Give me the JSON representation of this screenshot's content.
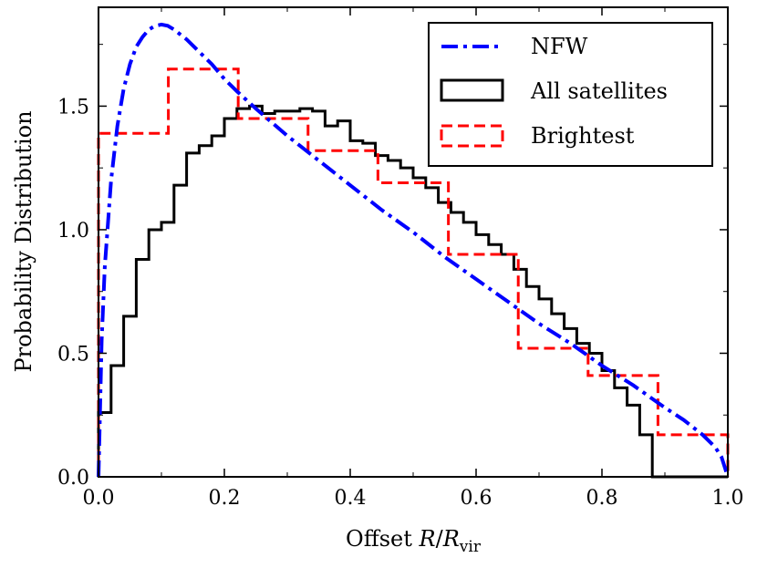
{
  "chart_data": {
    "type": "line",
    "xlabel": {
      "prefix": "Offset ",
      "R": "R",
      "slash": "/",
      "Rsub": "R",
      "sub": "vir"
    },
    "ylabel": "Probability Distribution",
    "xlim": [
      0.0,
      1.0
    ],
    "ylim": [
      0.0,
      1.9
    ],
    "xticks": [
      "0.0",
      "0.2",
      "0.4",
      "0.6",
      "0.8",
      "1.0"
    ],
    "yticks": [
      "0.0",
      "0.5",
      "1.0",
      "1.5"
    ],
    "legend_position": "top-right",
    "series": [
      {
        "name": "NFW",
        "style": "dashdot",
        "color": "#0000ff",
        "kind": "curve",
        "x": [
          0.0,
          0.005,
          0.01,
          0.02,
          0.03,
          0.04,
          0.05,
          0.06,
          0.07,
          0.08,
          0.09,
          0.1,
          0.11,
          0.12,
          0.14,
          0.16,
          0.18,
          0.2,
          0.22,
          0.25,
          0.3,
          0.35,
          0.4,
          0.45,
          0.5,
          0.55,
          0.6,
          0.65,
          0.7,
          0.75,
          0.8,
          0.85,
          0.9,
          0.93,
          0.96,
          0.98,
          0.99,
          1.0
        ],
        "y": [
          0.0,
          0.55,
          0.85,
          1.2,
          1.42,
          1.57,
          1.67,
          1.74,
          1.78,
          1.81,
          1.825,
          1.83,
          1.825,
          1.81,
          1.77,
          1.72,
          1.67,
          1.61,
          1.56,
          1.49,
          1.38,
          1.28,
          1.18,
          1.08,
          0.99,
          0.89,
          0.8,
          0.71,
          0.62,
          0.54,
          0.45,
          0.37,
          0.28,
          0.23,
          0.17,
          0.12,
          0.08,
          0.0
        ]
      },
      {
        "name": "All satellites",
        "style": "solid",
        "color": "#000000",
        "kind": "step",
        "bin_edges": [
          0.0,
          0.02,
          0.04,
          0.06,
          0.08,
          0.1,
          0.12,
          0.14,
          0.16,
          0.18,
          0.2,
          0.22,
          0.24,
          0.26,
          0.28,
          0.3,
          0.32,
          0.34,
          0.36,
          0.38,
          0.4,
          0.42,
          0.44,
          0.46,
          0.48,
          0.5,
          0.52,
          0.54,
          0.56,
          0.58,
          0.6,
          0.62,
          0.64,
          0.66,
          0.68,
          0.7,
          0.72,
          0.74,
          0.76,
          0.78,
          0.8,
          0.82,
          0.84,
          0.86,
          0.88,
          0.9,
          0.92,
          0.94,
          0.96,
          0.98,
          1.0
        ],
        "values": [
          0.26,
          0.45,
          0.65,
          0.88,
          1.0,
          1.03,
          1.18,
          1.31,
          1.34,
          1.38,
          1.45,
          1.49,
          1.5,
          1.47,
          1.48,
          1.48,
          1.49,
          1.48,
          1.42,
          1.44,
          1.36,
          1.35,
          1.3,
          1.28,
          1.25,
          1.21,
          1.17,
          1.11,
          1.07,
          1.03,
          0.98,
          0.94,
          0.9,
          0.84,
          0.77,
          0.72,
          0.66,
          0.6,
          0.54,
          0.5,
          0.43,
          0.36,
          0.29,
          0.17,
          0.0,
          0.0,
          0.0,
          0.0,
          0.0,
          0.0
        ]
      },
      {
        "name": "Brightest",
        "style": "dashed",
        "color": "#ff0000",
        "kind": "step",
        "bin_edges": [
          0.0,
          0.111,
          0.222,
          0.333,
          0.444,
          0.556,
          0.667,
          0.778,
          0.889,
          1.0
        ],
        "values": [
          1.39,
          1.65,
          1.45,
          1.32,
          1.19,
          0.9,
          0.52,
          0.41,
          0.17
        ]
      }
    ]
  }
}
